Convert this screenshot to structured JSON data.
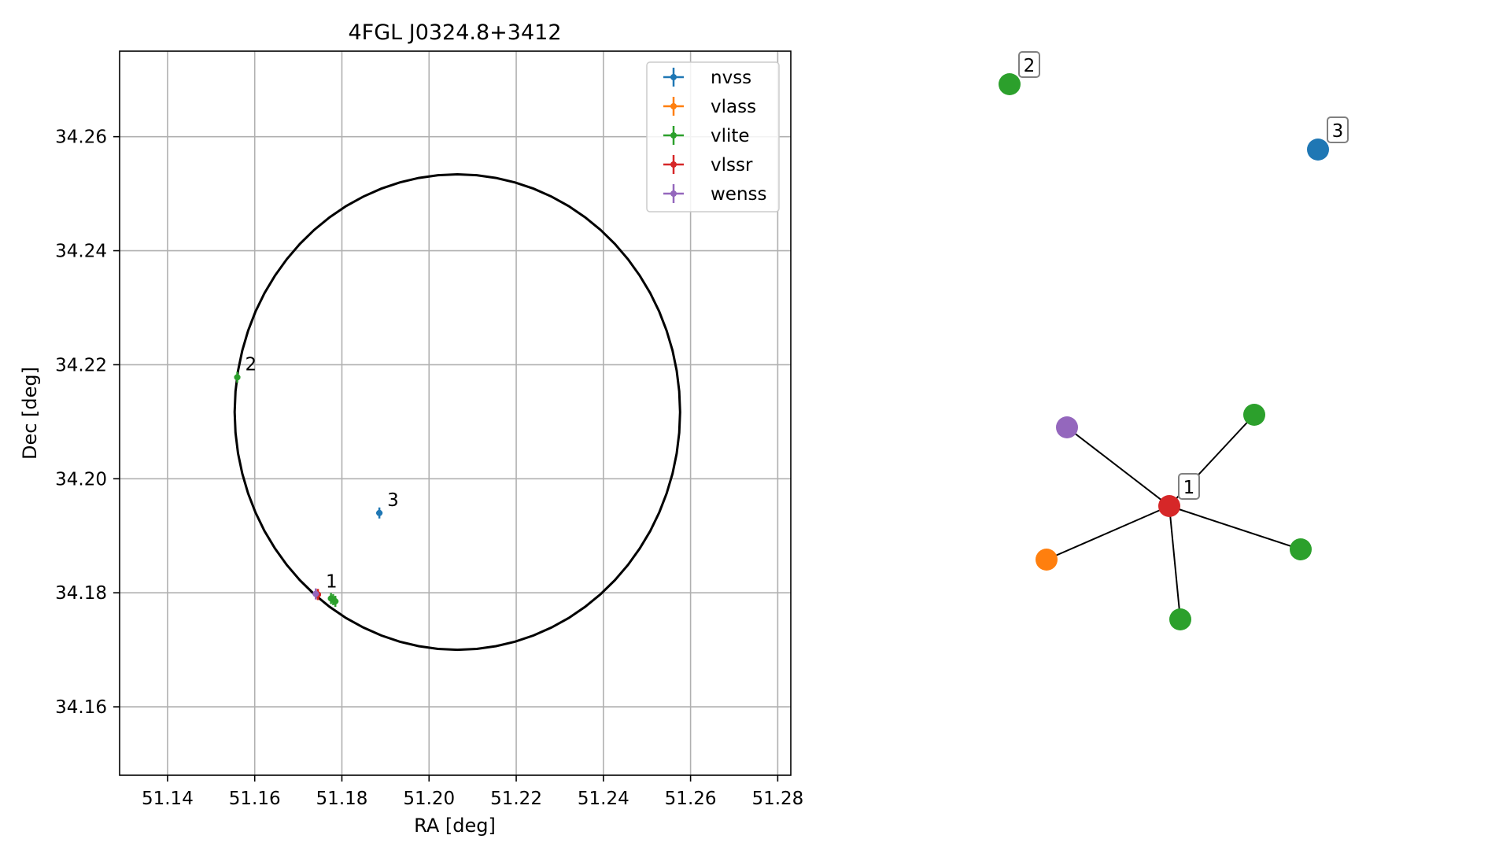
{
  "chart_data": [
    {
      "type": "scatter",
      "title": "4FGL J0324.8+3412",
      "xlabel": "RA [deg]",
      "ylabel": "Dec [deg]",
      "xlim": [
        51.129,
        51.283
      ],
      "ylim": [
        34.148,
        34.275
      ],
      "xticks": [
        "51.14",
        "51.16",
        "51.18",
        "51.20",
        "51.22",
        "51.24",
        "51.26",
        "51.28"
      ],
      "yticks": [
        "34.16",
        "34.18",
        "34.20",
        "34.22",
        "34.24",
        "34.26"
      ],
      "grid": true,
      "legend_position": "top-right",
      "ellipse": {
        "ra": 51.2065,
        "dec": 34.2117,
        "semi_ra": 0.0511,
        "semi_dec": 0.0417,
        "color": "#000000"
      },
      "series": [
        {
          "name": "nvss",
          "color": "#1f77b4",
          "points": [
            {
              "ra": 51.1886,
              "dec": 34.194,
              "label": "3"
            }
          ]
        },
        {
          "name": "vlass",
          "color": "#ff7f0e",
          "points": [
            {
              "ra": 51.1745,
              "dec": 34.1797
            }
          ]
        },
        {
          "name": "vlite",
          "color": "#2ca02c",
          "points": [
            {
              "ra": 51.156,
              "dec": 34.2178,
              "label": "2"
            },
            {
              "ra": 51.1775,
              "dec": 34.179
            },
            {
              "ra": 51.178,
              "dec": 34.1788
            },
            {
              "ra": 51.1785,
              "dec": 34.1785
            }
          ]
        },
        {
          "name": "vlssr",
          "color": "#d62728",
          "points": [
            {
              "ra": 51.1745,
              "dec": 34.1797,
              "label": "1"
            }
          ]
        },
        {
          "name": "wenss",
          "color": "#9467bd",
          "points": [
            {
              "ra": 51.174,
              "dec": 34.1798
            }
          ]
        }
      ]
    },
    {
      "type": "network",
      "nodes": [
        {
          "id": "n1",
          "color": "#d62728",
          "label": "1"
        },
        {
          "id": "n2",
          "color": "#2ca02c",
          "label": "2"
        },
        {
          "id": "n3",
          "color": "#1f77b4",
          "label": "3"
        },
        {
          "id": "n4",
          "color": "#9467bd"
        },
        {
          "id": "n5",
          "color": "#2ca02c"
        },
        {
          "id": "n6",
          "color": "#ff7f0e"
        },
        {
          "id": "n7",
          "color": "#2ca02c"
        },
        {
          "id": "n8",
          "color": "#2ca02c"
        }
      ],
      "edges": [
        [
          "n1",
          "n4"
        ],
        [
          "n1",
          "n5"
        ],
        [
          "n1",
          "n6"
        ],
        [
          "n1",
          "n7"
        ],
        [
          "n1",
          "n8"
        ]
      ]
    }
  ]
}
